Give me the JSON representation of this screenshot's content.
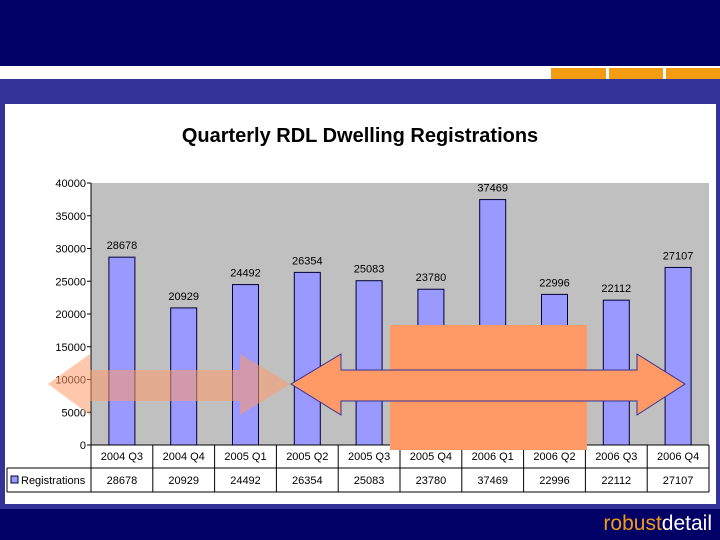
{
  "brand": {
    "part1": "robust",
    "part2": "detail"
  },
  "colors": {
    "bar": "#9999ff",
    "plot_bg": "#c0c0c0",
    "orange_arrow": "#ff9966",
    "header": "#000066",
    "accent": "#f39c12"
  },
  "chart_data": {
    "type": "bar",
    "title": "Quarterly RDL Dwelling Registrations",
    "categories": [
      "2004 Q3",
      "2004 Q4",
      "2005 Q1",
      "2005 Q2",
      "2005 Q3",
      "2005 Q4",
      "2006 Q1",
      "2006 Q2",
      "2006 Q3",
      "2006 Q4"
    ],
    "series": [
      {
        "name": "Registrations",
        "values": [
          28678,
          20929,
          24492,
          26354,
          25083,
          23780,
          37469,
          22996,
          22112,
          27107
        ]
      }
    ],
    "yticks": [
      0,
      5000,
      10000,
      15000,
      20000,
      25000,
      30000,
      35000,
      40000
    ],
    "ylim": [
      0,
      40000
    ],
    "grid": false,
    "legend": "data-table"
  }
}
